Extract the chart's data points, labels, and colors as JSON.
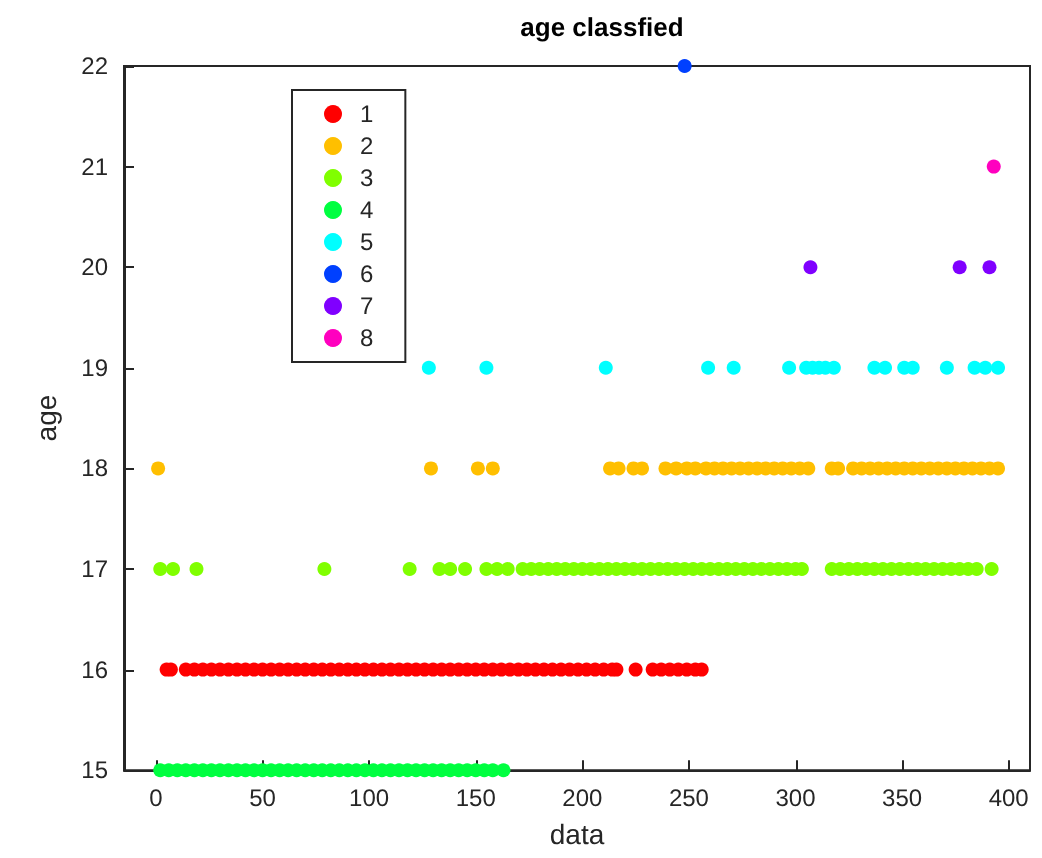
{
  "chart_data": {
    "type": "scatter",
    "title": "age classfied",
    "xlabel": "data",
    "ylabel": "age",
    "xlim": [
      -15,
      410
    ],
    "ylim": [
      15,
      22
    ],
    "xticks": [
      0,
      50,
      100,
      150,
      200,
      250,
      300,
      350,
      400
    ],
    "yticks": [
      15,
      16,
      17,
      18,
      19,
      20,
      21,
      22
    ],
    "legend": "top left",
    "marker": "circle",
    "series": [
      {
        "name": "1",
        "color": "#ff0000",
        "x": [
          5,
          7,
          14,
          18,
          22,
          26,
          30,
          34,
          38,
          42,
          46,
          50,
          54,
          58,
          62,
          66,
          70,
          74,
          78,
          82,
          86,
          90,
          94,
          98,
          102,
          106,
          110,
          114,
          118,
          122,
          126,
          130,
          134,
          138,
          142,
          146,
          150,
          154,
          158,
          162,
          166,
          170,
          174,
          178,
          182,
          186,
          190,
          194,
          198,
          202,
          206,
          210,
          214,
          216,
          225,
          233,
          237,
          241,
          245,
          249,
          253,
          256
        ],
        "values": [
          16,
          16,
          16,
          16,
          16,
          16,
          16,
          16,
          16,
          16,
          16,
          16,
          16,
          16,
          16,
          16,
          16,
          16,
          16,
          16,
          16,
          16,
          16,
          16,
          16,
          16,
          16,
          16,
          16,
          16,
          16,
          16,
          16,
          16,
          16,
          16,
          16,
          16,
          16,
          16,
          16,
          16,
          16,
          16,
          16,
          16,
          16,
          16,
          16,
          16,
          16,
          16,
          16,
          16,
          16,
          16,
          16,
          16,
          16,
          16,
          16,
          16
        ]
      },
      {
        "name": "2",
        "color": "#ffbf00",
        "x": [
          1,
          129,
          151,
          158,
          213,
          217,
          224,
          228,
          239,
          244,
          249,
          253,
          258,
          262,
          266,
          270,
          274,
          278,
          282,
          286,
          290,
          294,
          298,
          302,
          306,
          317,
          320,
          327,
          331,
          335,
          339,
          343,
          347,
          351,
          355,
          359,
          363,
          367,
          371,
          375,
          379,
          383,
          387,
          391,
          395
        ],
        "values": [
          18,
          18,
          18,
          18,
          18,
          18,
          18,
          18,
          18,
          18,
          18,
          18,
          18,
          18,
          18,
          18,
          18,
          18,
          18,
          18,
          18,
          18,
          18,
          18,
          18,
          18,
          18,
          18,
          18,
          18,
          18,
          18,
          18,
          18,
          18,
          18,
          18,
          18,
          18,
          18,
          18,
          18,
          18,
          18,
          18
        ]
      },
      {
        "name": "3",
        "color": "#80ff00",
        "x": [
          2,
          8,
          19,
          79,
          119,
          133,
          138,
          145,
          155,
          160,
          165,
          172,
          176,
          180,
          184,
          188,
          192,
          196,
          200,
          204,
          208,
          212,
          216,
          220,
          224,
          228,
          232,
          236,
          240,
          244,
          248,
          252,
          256,
          260,
          264,
          268,
          272,
          276,
          280,
          284,
          288,
          292,
          296,
          300,
          303,
          317,
          321,
          325,
          329,
          333,
          337,
          341,
          345,
          349,
          353,
          357,
          361,
          365,
          369,
          373,
          377,
          381,
          385,
          392
        ],
        "values": [
          17,
          17,
          17,
          17,
          17,
          17,
          17,
          17,
          17,
          17,
          17,
          17,
          17,
          17,
          17,
          17,
          17,
          17,
          17,
          17,
          17,
          17,
          17,
          17,
          17,
          17,
          17,
          17,
          17,
          17,
          17,
          17,
          17,
          17,
          17,
          17,
          17,
          17,
          17,
          17,
          17,
          17,
          17,
          17,
          17,
          17,
          17,
          17,
          17,
          17,
          17,
          17,
          17,
          17,
          17,
          17,
          17,
          17,
          17,
          17,
          17,
          17,
          17,
          17
        ]
      },
      {
        "name": "4",
        "color": "#00ff40",
        "x": [
          2,
          6,
          10,
          14,
          18,
          22,
          26,
          30,
          34,
          38,
          42,
          46,
          50,
          54,
          58,
          62,
          66,
          70,
          74,
          78,
          82,
          86,
          90,
          94,
          98,
          102,
          106,
          110,
          114,
          118,
          122,
          126,
          130,
          134,
          138,
          142,
          146,
          150,
          154,
          158,
          163
        ],
        "values": [
          15,
          15,
          15,
          15,
          15,
          15,
          15,
          15,
          15,
          15,
          15,
          15,
          15,
          15,
          15,
          15,
          15,
          15,
          15,
          15,
          15,
          15,
          15,
          15,
          15,
          15,
          15,
          15,
          15,
          15,
          15,
          15,
          15,
          15,
          15,
          15,
          15,
          15,
          15,
          15,
          15
        ]
      },
      {
        "name": "5",
        "color": "#00ffff",
        "x": [
          128,
          155,
          211,
          259,
          271,
          297,
          305,
          308,
          311,
          314,
          318,
          337,
          342,
          351,
          355,
          371,
          384,
          389,
          395
        ],
        "values": [
          19,
          19,
          19,
          19,
          19,
          19,
          19,
          19,
          19,
          19,
          19,
          19,
          19,
          19,
          19,
          19,
          19,
          19,
          19
        ]
      },
      {
        "name": "6",
        "color": "#0040ff",
        "x": [
          248
        ],
        "values": [
          22
        ]
      },
      {
        "name": "7",
        "color": "#8000ff",
        "x": [
          307,
          377,
          391
        ],
        "values": [
          20,
          20,
          20
        ]
      },
      {
        "name": "8",
        "color": "#ff00bf",
        "x": [
          393
        ],
        "values": [
          21
        ]
      }
    ]
  }
}
